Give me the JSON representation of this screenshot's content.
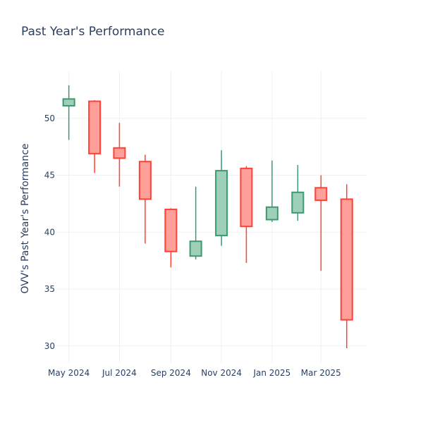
{
  "chart_data": {
    "type": "candlestick",
    "title": "Past Year's Performance",
    "xlabel": "",
    "ylabel": "OVV's Past Year's Performance",
    "ylim": [
      28.5,
      54.2
    ],
    "xlim": [
      "2024-04-16",
      "2025-04-25"
    ],
    "y_ticks": [
      30,
      35,
      40,
      45,
      50
    ],
    "x_ticks": [
      {
        "date": "2024-05-01",
        "label": "May 2024"
      },
      {
        "date": "2024-07-01",
        "label": "Jul 2024"
      },
      {
        "date": "2024-09-01",
        "label": "Sep 2024"
      },
      {
        "date": "2024-11-01",
        "label": "Nov 2024"
      },
      {
        "date": "2025-01-01",
        "label": "Jan 2025"
      },
      {
        "date": "2025-03-01",
        "label": "Mar 2025"
      }
    ],
    "grid": true,
    "colors": {
      "increasing": "#3d9970",
      "decreasing": "#ff4136",
      "increasing_fill": "#9ecfb8",
      "decreasing_fill": "#ff9f9a"
    },
    "candles": [
      {
        "date": "2024-05-01",
        "open": 51.1,
        "high": 52.9,
        "low": 48.1,
        "close": 51.7
      },
      {
        "date": "2024-06-01",
        "open": 51.5,
        "high": 51.6,
        "low": 45.2,
        "close": 46.9
      },
      {
        "date": "2024-07-01",
        "open": 47.4,
        "high": 49.6,
        "low": 44.0,
        "close": 46.5
      },
      {
        "date": "2024-08-01",
        "open": 46.2,
        "high": 46.8,
        "low": 39.0,
        "close": 42.9
      },
      {
        "date": "2024-09-01",
        "open": 42.0,
        "high": 42.1,
        "low": 36.9,
        "close": 38.3
      },
      {
        "date": "2024-10-01",
        "open": 37.9,
        "high": 44.0,
        "low": 37.6,
        "close": 39.2
      },
      {
        "date": "2024-11-01",
        "open": 39.7,
        "high": 47.2,
        "low": 38.8,
        "close": 45.4
      },
      {
        "date": "2024-12-01",
        "open": 45.6,
        "high": 45.8,
        "low": 37.3,
        "close": 40.5
      },
      {
        "date": "2025-01-01",
        "open": 41.1,
        "high": 46.3,
        "low": 40.9,
        "close": 42.2
      },
      {
        "date": "2025-02-01",
        "open": 41.7,
        "high": 45.9,
        "low": 41.0,
        "close": 43.5
      },
      {
        "date": "2025-03-01",
        "open": 43.9,
        "high": 45.0,
        "low": 36.6,
        "close": 42.8
      },
      {
        "date": "2025-04-01",
        "open": 42.9,
        "high": 44.2,
        "low": 29.8,
        "close": 32.3
      }
    ]
  }
}
